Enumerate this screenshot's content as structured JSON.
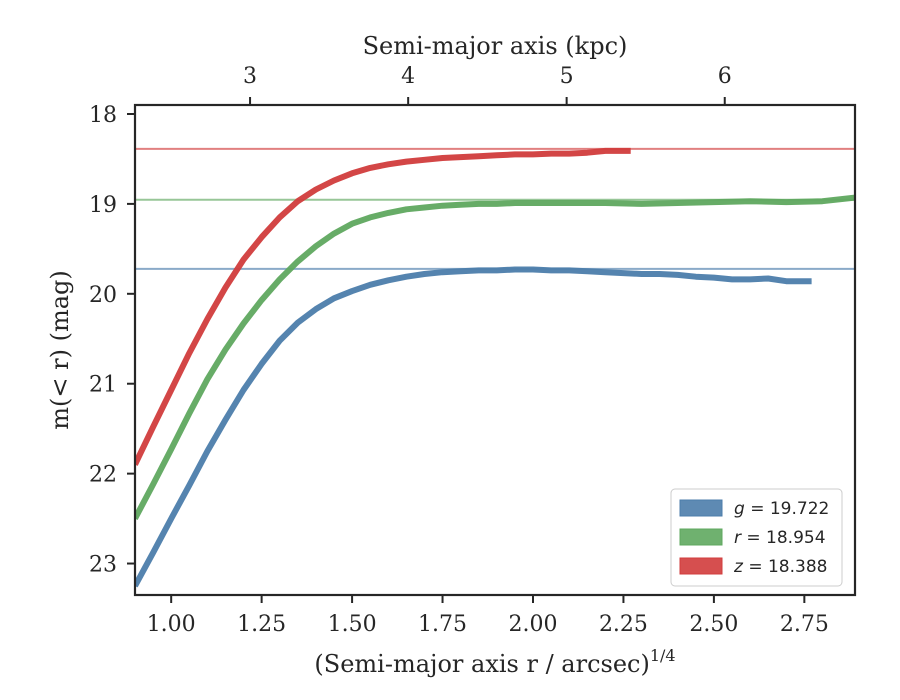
{
  "chart_data": {
    "type": "line",
    "xlabel": "(Semi-major axis r / arcsec)",
    "xlabel_sup": "1/4",
    "ylabel": "m(< r) (mag)",
    "top_xlabel": "Semi-major axis (kpc)",
    "xlim": [
      0.9,
      2.89
    ],
    "ylim": [
      23.35,
      17.9
    ],
    "y_inverted": true,
    "x_ticks": [
      1.0,
      1.25,
      1.5,
      1.75,
      2.0,
      2.25,
      2.5,
      2.75
    ],
    "x_tick_labels": [
      "1.00",
      "1.25",
      "1.50",
      "1.75",
      "2.00",
      "2.25",
      "2.50",
      "2.75"
    ],
    "y_ticks": [
      18,
      19,
      20,
      21,
      22,
      23
    ],
    "y_tick_labels": [
      "18",
      "19",
      "20",
      "21",
      "22",
      "23"
    ],
    "top_x_ticks_kpc": [
      3,
      4,
      5,
      6
    ],
    "top_x_ticks_pos": [
      1.218,
      1.655,
      2.093,
      2.53
    ],
    "top_x_tick_labels": [
      "3",
      "4",
      "5",
      "6"
    ],
    "grid": false,
    "legend_position": "bottom-right",
    "series": [
      {
        "name": "g = 19.722",
        "legend_var": "g",
        "legend_value": "= 19.722",
        "color": "#4c7dab",
        "asymptote": 19.722,
        "x": [
          0.9,
          0.95,
          1.0,
          1.05,
          1.1,
          1.15,
          1.2,
          1.25,
          1.3,
          1.35,
          1.4,
          1.45,
          1.5,
          1.55,
          1.6,
          1.65,
          1.7,
          1.75,
          1.8,
          1.85,
          1.9,
          1.95,
          2.0,
          2.05,
          2.1,
          2.15,
          2.2,
          2.25,
          2.3,
          2.35,
          2.4,
          2.45,
          2.5,
          2.55,
          2.6,
          2.65,
          2.7,
          2.77
        ],
        "y": [
          23.25,
          22.88,
          22.5,
          22.13,
          21.75,
          21.4,
          21.07,
          20.78,
          20.52,
          20.32,
          20.17,
          20.05,
          19.97,
          19.9,
          19.85,
          19.81,
          19.78,
          19.76,
          19.75,
          19.74,
          19.74,
          19.73,
          19.73,
          19.74,
          19.74,
          19.75,
          19.76,
          19.77,
          19.78,
          19.78,
          19.79,
          19.81,
          19.82,
          19.84,
          19.84,
          19.83,
          19.86,
          19.86
        ]
      },
      {
        "name": "r = 18.954",
        "legend_var": "r",
        "legend_value": "= 18.954",
        "color": "#5fa85f",
        "asymptote": 18.954,
        "x": [
          0.9,
          0.95,
          1.0,
          1.05,
          1.1,
          1.15,
          1.2,
          1.25,
          1.3,
          1.35,
          1.4,
          1.45,
          1.5,
          1.55,
          1.6,
          1.65,
          1.7,
          1.75,
          1.8,
          1.85,
          1.9,
          1.95,
          2.0,
          2.1,
          2.2,
          2.3,
          2.4,
          2.5,
          2.6,
          2.7,
          2.8,
          2.89
        ],
        "y": [
          22.5,
          22.12,
          21.73,
          21.33,
          20.95,
          20.62,
          20.33,
          20.07,
          19.84,
          19.64,
          19.47,
          19.33,
          19.22,
          19.15,
          19.1,
          19.06,
          19.04,
          19.02,
          19.01,
          19.0,
          19.0,
          18.99,
          18.99,
          18.99,
          18.99,
          19.0,
          18.99,
          18.98,
          18.97,
          18.98,
          18.97,
          18.93
        ]
      },
      {
        "name": "z = 18.388",
        "legend_var": "z",
        "legend_value": "= 18.388",
        "color": "#d13c3c",
        "asymptote": 18.388,
        "x": [
          0.9,
          0.95,
          1.0,
          1.05,
          1.1,
          1.15,
          1.2,
          1.25,
          1.3,
          1.35,
          1.4,
          1.45,
          1.5,
          1.55,
          1.6,
          1.65,
          1.7,
          1.75,
          1.8,
          1.85,
          1.9,
          1.95,
          2.0,
          2.05,
          2.1,
          2.15,
          2.2,
          2.27
        ],
        "y": [
          21.9,
          21.48,
          21.07,
          20.66,
          20.28,
          19.93,
          19.62,
          19.37,
          19.15,
          18.97,
          18.84,
          18.74,
          18.66,
          18.6,
          18.56,
          18.53,
          18.51,
          18.49,
          18.48,
          18.47,
          18.46,
          18.45,
          18.45,
          18.44,
          18.44,
          18.43,
          18.41,
          18.41
        ]
      }
    ]
  }
}
